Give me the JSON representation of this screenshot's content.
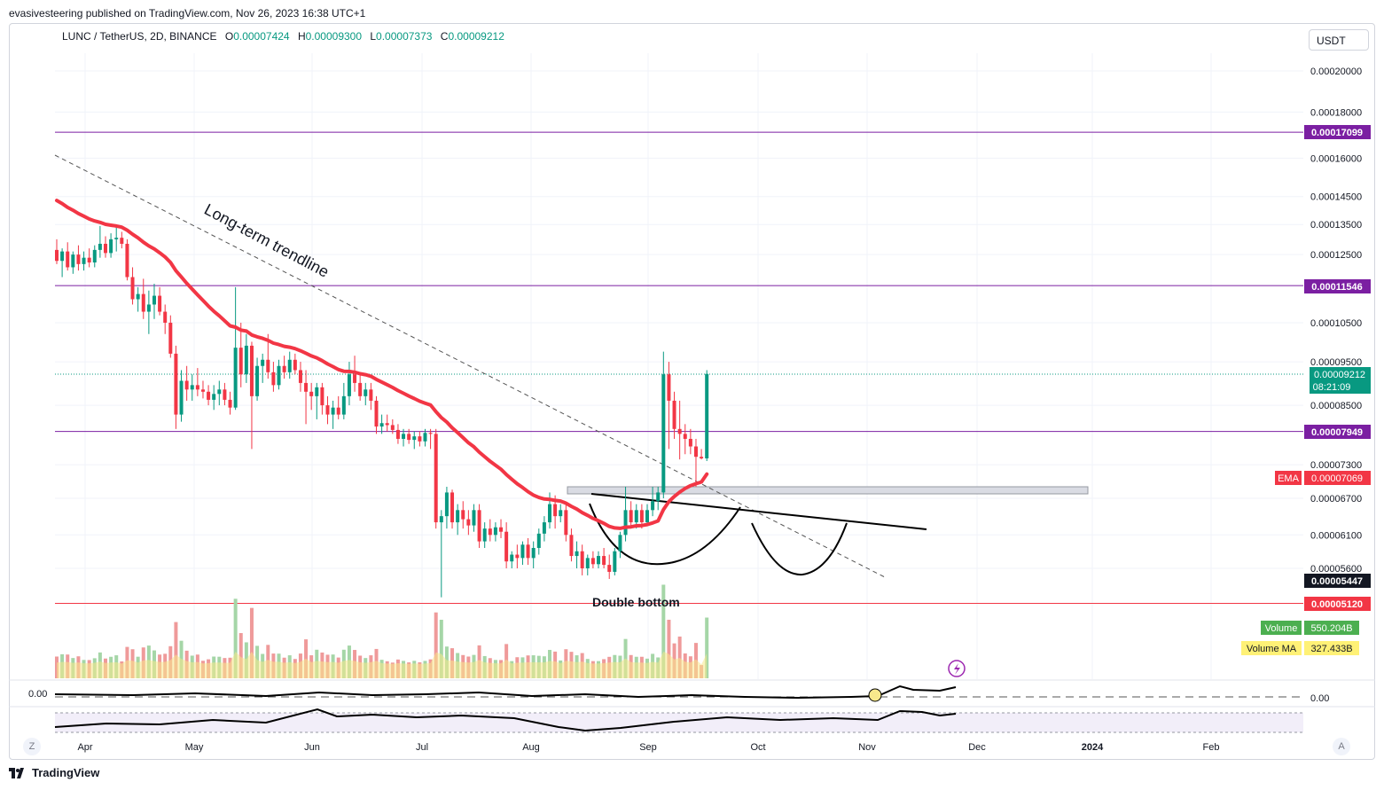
{
  "publisher_line": "evasivesteering published on TradingView.com, Nov 26, 2023 16:38 UTC+1",
  "legend": {
    "symbol": "LUNC / TetherUS, 2D, BINANCE",
    "o_label": "O",
    "o": "0.00007424",
    "h_label": "H",
    "h": "0.00009300",
    "l_label": "L",
    "l": "0.00007373",
    "c_label": "C",
    "c": "0.00009212"
  },
  "currency": "USDT",
  "chart_data": {
    "type": "candlestick",
    "symbol": "LUNC / TetherUS",
    "interval": "2D",
    "exchange": "BINANCE",
    "price_axis_ticks": [
      "0.00020000",
      "0.00018000",
      "0.00016000",
      "0.00014500",
      "0.00013500",
      "0.00012500",
      "0.00010500",
      "0.00009500",
      "0.00008500",
      "0.00007300",
      "0.00006700",
      "0.00006100",
      "0.00005600"
    ],
    "time_axis_ticks": [
      "Apr",
      "May",
      "Jun",
      "Jul",
      "Aug",
      "Sep",
      "Oct",
      "Nov",
      "Dec",
      "2024",
      "Feb"
    ],
    "horizontal_levels": [
      {
        "price": 0.00017099,
        "label": "0.00017099",
        "color": "#7b1fa2"
      },
      {
        "price": 0.00011546,
        "label": "0.00011546",
        "color": "#7b1fa2"
      },
      {
        "price": 7.949e-05,
        "label": "0.00007949",
        "color": "#7b1fa2"
      },
      {
        "price": 5.12e-05,
        "label": "0.00005120",
        "color": "#f23645"
      }
    ],
    "last_price": {
      "value": "0.00009212",
      "countdown": "08:21:09"
    },
    "ema": {
      "label": "EMA",
      "value": "0.00007069",
      "color": "#f23645"
    },
    "crosshair_price": "0.00005447",
    "volume": {
      "label": "Volume",
      "value": "550.204B"
    },
    "volume_ma": {
      "label": "Volume MA",
      "value": "327.433B"
    },
    "oscillator_left_label": "0.00",
    "oscillator_right_label": "0.00",
    "annotations": [
      {
        "text": "Long-term trendline"
      },
      {
        "text": "Double bottom"
      }
    ],
    "candles": [
      {
        "t": "Mar 27",
        "o": 0.0001265,
        "h": 0.00013,
        "l": 0.000122,
        "c": 0.000123
      },
      {
        "t": "Mar 29",
        "o": 0.000123,
        "h": 0.000127,
        "l": 0.000118,
        "c": 0.000126
      },
      {
        "t": "Mar 31",
        "o": 0.000126,
        "h": 0.000129,
        "l": 0.00012,
        "c": 0.000121
      },
      {
        "t": "Apr 2",
        "o": 0.000121,
        "h": 0.000126,
        "l": 0.000119,
        "c": 0.000125
      },
      {
        "t": "Apr 4",
        "o": 0.000125,
        "h": 0.000128,
        "l": 0.00012,
        "c": 0.000122
      },
      {
        "t": "Apr 6",
        "o": 0.000122,
        "h": 0.000126,
        "l": 0.00012,
        "c": 0.000124
      },
      {
        "t": "Apr 8",
        "o": 0.000124,
        "h": 0.000127,
        "l": 0.000121,
        "c": 0.0001225
      },
      {
        "t": "Apr 10",
        "o": 0.0001225,
        "h": 0.000128,
        "l": 0.000121,
        "c": 0.0001265
      },
      {
        "t": "Apr 12",
        "o": 0.0001265,
        "h": 0.0001345,
        "l": 0.000124,
        "c": 0.0001285
      },
      {
        "t": "Apr 14",
        "o": 0.0001285,
        "h": 0.000131,
        "l": 0.000124,
        "c": 0.0001255
      },
      {
        "t": "Apr 16",
        "o": 0.0001255,
        "h": 0.000132,
        "l": 0.000124,
        "c": 0.00013
      },
      {
        "t": "Apr 18",
        "o": 0.00013,
        "h": 0.000135,
        "l": 0.000126,
        "c": 0.0001305
      },
      {
        "t": "Apr 20",
        "o": 0.0001305,
        "h": 0.0001325,
        "l": 0.000127,
        "c": 0.0001285
      },
      {
        "t": "Apr 22",
        "o": 0.0001285,
        "h": 0.00013,
        "l": 0.000117,
        "c": 0.000118
      },
      {
        "t": "Apr 24",
        "o": 0.000118,
        "h": 0.000121,
        "l": 0.00011,
        "c": 0.0001115
      },
      {
        "t": "Apr 26",
        "o": 0.0001115,
        "h": 0.000115,
        "l": 0.000108,
        "c": 0.000113
      },
      {
        "t": "Apr 28",
        "o": 0.000113,
        "h": 0.0001175,
        "l": 0.000106,
        "c": 0.000108
      },
      {
        "t": "Apr 30",
        "o": 0.000108,
        "h": 0.000114,
        "l": 0.000102,
        "c": 0.00011
      },
      {
        "t": "May 2",
        "o": 0.00011,
        "h": 0.000116,
        "l": 0.000106,
        "c": 0.0001125
      },
      {
        "t": "May 4",
        "o": 0.0001125,
        "h": 0.000115,
        "l": 0.000107,
        "c": 0.000108
      },
      {
        "t": "May 6",
        "o": 0.000108,
        "h": 0.00011,
        "l": 0.000102,
        "c": 0.000105
      },
      {
        "t": "May 8",
        "o": 0.000105,
        "h": 0.000107,
        "l": 9.6e-05,
        "c": 9.7e-05
      },
      {
        "t": "May 10",
        "o": 9.7e-05,
        "h": 9.9e-05,
        "l": 8e-05,
        "c": 8.3e-05
      },
      {
        "t": "May 12",
        "o": 8.3e-05,
        "h": 9.3e-05,
        "l": 8.15e-05,
        "c": 9.05e-05
      },
      {
        "t": "May 14",
        "o": 9.05e-05,
        "h": 9.4e-05,
        "l": 8.6e-05,
        "c": 8.85e-05
      },
      {
        "t": "May 16",
        "o": 8.85e-05,
        "h": 9.2e-05,
        "l": 8.6e-05,
        "c": 8.95e-05
      },
      {
        "t": "May 18",
        "o": 8.95e-05,
        "h": 9.35e-05,
        "l": 8.7e-05,
        "c": 8.85e-05
      },
      {
        "t": "May 20",
        "o": 8.85e-05,
        "h": 9.05e-05,
        "l": 8.65e-05,
        "c": 8.8e-05
      },
      {
        "t": "May 22",
        "o": 8.8e-05,
        "h": 8.95e-05,
        "l": 8.5e-05,
        "c": 8.62e-05
      },
      {
        "t": "May 24",
        "o": 8.62e-05,
        "h": 8.95e-05,
        "l": 8.4e-05,
        "c": 8.75e-05
      },
      {
        "t": "May 26",
        "o": 8.75e-05,
        "h": 9.05e-05,
        "l": 8.5e-05,
        "c": 8.85e-05
      },
      {
        "t": "May 28",
        "o": 8.85e-05,
        "h": 9e-05,
        "l": 8.5e-05,
        "c": 8.62e-05
      },
      {
        "t": "May 30",
        "o": 8.62e-05,
        "h": 8.8e-05,
        "l": 8.3e-05,
        "c": 8.45e-05
      },
      {
        "t": "Jun 1",
        "o": 8.45e-05,
        "h": 0.000115,
        "l": 8.4e-05,
        "c": 9.85e-05
      },
      {
        "t": "Jun 3",
        "o": 9.85e-05,
        "h": 0.000105,
        "l": 8.9e-05,
        "c": 9.2e-05
      },
      {
        "t": "Jun 5",
        "o": 9.2e-05,
        "h": 0.000102,
        "l": 9e-05,
        "c": 9.9e-05
      },
      {
        "t": "Jun 7",
        "o": 9.9e-05,
        "h": 0.0001,
        "l": 7.6e-05,
        "c": 8.7e-05
      },
      {
        "t": "Jun 9",
        "o": 8.7e-05,
        "h": 9.6e-05,
        "l": 8.6e-05,
        "c": 9.4e-05
      },
      {
        "t": "Jun 11",
        "o": 9.4e-05,
        "h": 9.7e-05,
        "l": 9e-05,
        "c": 9.55e-05
      },
      {
        "t": "Jun 13",
        "o": 9.55e-05,
        "h": 0.000102,
        "l": 9.1e-05,
        "c": 9.25e-05
      },
      {
        "t": "Jun 15",
        "o": 9.25e-05,
        "h": 9.5e-05,
        "l": 8.8e-05,
        "c": 8.95e-05
      },
      {
        "t": "Jun 17",
        "o": 8.95e-05,
        "h": 9.55e-05,
        "l": 8.85e-05,
        "c": 9.4e-05
      },
      {
        "t": "Jun 19",
        "o": 9.4e-05,
        "h": 9.65e-05,
        "l": 9.1e-05,
        "c": 9.25e-05
      },
      {
        "t": "Jun 21",
        "o": 9.25e-05,
        "h": 9.75e-05,
        "l": 9.1e-05,
        "c": 9.55e-05
      },
      {
        "t": "Jun 23",
        "o": 9.55e-05,
        "h": 9.7e-05,
        "l": 9.2e-05,
        "c": 9.3e-05
      },
      {
        "t": "Jun 25",
        "o": 9.3e-05,
        "h": 9.5e-05,
        "l": 8.8e-05,
        "c": 9e-05
      },
      {
        "t": "Jun 27",
        "o": 9e-05,
        "h": 9.3e-05,
        "l": 8.1e-05,
        "c": 8.8e-05
      },
      {
        "t": "Jun 29",
        "o": 8.8e-05,
        "h": 9e-05,
        "l": 8.4e-05,
        "c": 8.7e-05
      },
      {
        "t": "Jul 1",
        "o": 8.7e-05,
        "h": 9e-05,
        "l": 8.2e-05,
        "c": 8.9e-05
      },
      {
        "t": "Jul 3",
        "o": 8.9e-05,
        "h": 9e-05,
        "l": 8.3e-05,
        "c": 8.5e-05
      },
      {
        "t": "Jul 5",
        "o": 8.5e-05,
        "h": 8.7e-05,
        "l": 8.1e-05,
        "c": 8.3e-05
      },
      {
        "t": "Jul 7",
        "o": 8.3e-05,
        "h": 8.6e-05,
        "l": 8e-05,
        "c": 8.45e-05
      },
      {
        "t": "Jul 9",
        "o": 8.45e-05,
        "h": 8.7e-05,
        "l": 8.2e-05,
        "c": 8.3e-05
      },
      {
        "t": "Jul 11",
        "o": 8.3e-05,
        "h": 9e-05,
        "l": 8.2e-05,
        "c": 8.7e-05
      },
      {
        "t": "Jul 13",
        "o": 8.7e-05,
        "h": 9.5e-05,
        "l": 8.5e-05,
        "c": 9.2e-05
      },
      {
        "t": "Jul 15",
        "o": 9.2e-05,
        "h": 9.65e-05,
        "l": 8.8e-05,
        "c": 9e-05
      },
      {
        "t": "Jul 17",
        "o": 9e-05,
        "h": 9.2e-05,
        "l": 8.6e-05,
        "c": 8.7e-05
      },
      {
        "t": "Jul 19",
        "o": 8.7e-05,
        "h": 9e-05,
        "l": 8.5e-05,
        "c": 8.85e-05
      },
      {
        "t": "Jul 21",
        "o": 8.85e-05,
        "h": 9e-05,
        "l": 8.4e-05,
        "c": 8.6e-05
      },
      {
        "t": "Jul 23",
        "o": 8.6e-05,
        "h": 8.7e-05,
        "l": 7.9e-05,
        "c": 8.05e-05
      },
      {
        "t": "Jul 25",
        "o": 8.05e-05,
        "h": 8.3e-05,
        "l": 7.9e-05,
        "c": 8.12e-05
      },
      {
        "t": "Jul 27",
        "o": 8.12e-05,
        "h": 8.3e-05,
        "l": 7.95e-05,
        "c": 8.08e-05
      },
      {
        "t": "Jul 29",
        "o": 8.08e-05,
        "h": 8.2e-05,
        "l": 7.9e-05,
        "c": 7.98e-05
      },
      {
        "t": "Jul 31",
        "o": 7.98e-05,
        "h": 8.1e-05,
        "l": 7.7e-05,
        "c": 7.8e-05
      },
      {
        "t": "Aug 2",
        "o": 7.8e-05,
        "h": 8e-05,
        "l": 7.65e-05,
        "c": 7.9e-05
      },
      {
        "t": "Aug 4",
        "o": 7.9e-05,
        "h": 8e-05,
        "l": 7.7e-05,
        "c": 7.78e-05
      },
      {
        "t": "Aug 6",
        "o": 7.78e-05,
        "h": 7.95e-05,
        "l": 7.6e-05,
        "c": 7.85e-05
      },
      {
        "t": "Aug 8",
        "o": 7.85e-05,
        "h": 7.95e-05,
        "l": 7.65e-05,
        "c": 7.75e-05
      },
      {
        "t": "Aug 10",
        "o": 7.75e-05,
        "h": 8e-05,
        "l": 7.65e-05,
        "c": 7.92e-05
      },
      {
        "t": "Aug 12",
        "o": 7.92e-05,
        "h": 8e-05,
        "l": 7.6e-05,
        "c": 7.9e-05
      },
      {
        "t": "Aug 14",
        "o": 7.9e-05,
        "h": 8e-05,
        "l": 6.2e-05,
        "c": 6.3e-05
      },
      {
        "t": "Aug 16",
        "o": 6.3e-05,
        "h": 6.5e-05,
        "l": 5.2e-05,
        "c": 6.4e-05
      },
      {
        "t": "Aug 18",
        "o": 6.4e-05,
        "h": 6.9e-05,
        "l": 6.2e-05,
        "c": 6.8e-05
      },
      {
        "t": "Aug 20",
        "o": 6.8e-05,
        "h": 6.85e-05,
        "l": 6.2e-05,
        "c": 6.3e-05
      },
      {
        "t": "Aug 22",
        "o": 6.3e-05,
        "h": 6.6e-05,
        "l": 6.1e-05,
        "c": 6.5e-05
      },
      {
        "t": "Aug 24",
        "o": 6.5e-05,
        "h": 6.65e-05,
        "l": 6.2e-05,
        "c": 6.35e-05
      },
      {
        "t": "Aug 26",
        "o": 6.35e-05,
        "h": 6.5e-05,
        "l": 6.1e-05,
        "c": 6.25e-05
      },
      {
        "t": "Aug 28",
        "o": 6.25e-05,
        "h": 6.6e-05,
        "l": 6.15e-05,
        "c": 6.5e-05
      },
      {
        "t": "Aug 30",
        "o": 6.5e-05,
        "h": 6.6e-05,
        "l": 5.9e-05,
        "c": 6e-05
      },
      {
        "t": "Sep 1",
        "o": 6e-05,
        "h": 6.3e-05,
        "l": 5.9e-05,
        "c": 6.2e-05
      },
      {
        "t": "Sep 3",
        "o": 6.2e-05,
        "h": 6.35e-05,
        "l": 6e-05,
        "c": 6.1e-05
      },
      {
        "t": "Sep 5",
        "o": 6.1e-05,
        "h": 6.3e-05,
        "l": 6e-05,
        "c": 6.22e-05
      },
      {
        "t": "Sep 7",
        "o": 6.22e-05,
        "h": 6.35e-05,
        "l": 6.05e-05,
        "c": 6.15e-05
      },
      {
        "t": "Sep 9",
        "o": 6.15e-05,
        "h": 6.3e-05,
        "l": 5.6e-05,
        "c": 5.7e-05
      },
      {
        "t": "Sep 11",
        "o": 5.7e-05,
        "h": 5.85e-05,
        "l": 5.6e-05,
        "c": 5.8e-05
      },
      {
        "t": "Sep 13",
        "o": 5.8e-05,
        "h": 5.95e-05,
        "l": 5.6e-05,
        "c": 5.75e-05
      },
      {
        "t": "Sep 15",
        "o": 5.75e-05,
        "h": 6e-05,
        "l": 5.65e-05,
        "c": 5.95e-05
      },
      {
        "t": "Sep 17",
        "o": 5.95e-05,
        "h": 6.05e-05,
        "l": 5.65e-05,
        "c": 5.75e-05
      },
      {
        "t": "Sep 19",
        "o": 5.75e-05,
        "h": 6e-05,
        "l": 5.6e-05,
        "c": 5.9e-05
      },
      {
        "t": "Sep 21",
        "o": 5.9e-05,
        "h": 6.2e-05,
        "l": 5.8e-05,
        "c": 6.12e-05
      },
      {
        "t": "Sep 23",
        "o": 6.12e-05,
        "h": 6.4e-05,
        "l": 6e-05,
        "c": 6.3e-05
      },
      {
        "t": "Sep 25",
        "o": 6.3e-05,
        "h": 6.8e-05,
        "l": 6.2e-05,
        "c": 6.6e-05
      },
      {
        "t": "Sep 27",
        "o": 6.6e-05,
        "h": 6.75e-05,
        "l": 6.2e-05,
        "c": 6.4e-05
      },
      {
        "t": "Sep 29",
        "o": 6.4e-05,
        "h": 6.6e-05,
        "l": 6.3e-05,
        "c": 6.5e-05
      },
      {
        "t": "Oct 1",
        "o": 6.5e-05,
        "h": 6.6e-05,
        "l": 6e-05,
        "c": 6.1e-05
      },
      {
        "t": "Oct 3",
        "o": 6.1e-05,
        "h": 6.2e-05,
        "l": 5.7e-05,
        "c": 5.78e-05
      },
      {
        "t": "Oct 5",
        "o": 5.78e-05,
        "h": 6e-05,
        "l": 5.6e-05,
        "c": 5.85e-05
      },
      {
        "t": "Oct 7",
        "o": 5.85e-05,
        "h": 5.95e-05,
        "l": 5.5e-05,
        "c": 5.6e-05
      },
      {
        "t": "Oct 9",
        "o": 5.6e-05,
        "h": 5.8e-05,
        "l": 5.5e-05,
        "c": 5.75e-05
      },
      {
        "t": "Oct 11",
        "o": 5.75e-05,
        "h": 5.85e-05,
        "l": 5.6e-05,
        "c": 5.66e-05
      },
      {
        "t": "Oct 13",
        "o": 5.66e-05,
        "h": 5.85e-05,
        "l": 5.6e-05,
        "c": 5.78e-05
      },
      {
        "t": "Oct 15",
        "o": 5.78e-05,
        "h": 5.9e-05,
        "l": 5.6e-05,
        "c": 5.65e-05
      },
      {
        "t": "Oct 17",
        "o": 5.65e-05,
        "h": 5.8e-05,
        "l": 5.45e-05,
        "c": 5.55e-05
      },
      {
        "t": "Oct 19",
        "o": 5.55e-05,
        "h": 5.9e-05,
        "l": 5.5e-05,
        "c": 5.85e-05
      },
      {
        "t": "Oct 21",
        "o": 5.85e-05,
        "h": 6.15e-05,
        "l": 5.75e-05,
        "c": 6.1e-05
      },
      {
        "t": "Oct 23",
        "o": 6.1e-05,
        "h": 6.9e-05,
        "l": 6e-05,
        "c": 6.5e-05
      },
      {
        "t": "Oct 25",
        "o": 6.5e-05,
        "h": 6.65e-05,
        "l": 6.2e-05,
        "c": 6.3e-05
      },
      {
        "t": "Oct 27",
        "o": 6.3e-05,
        "h": 6.6e-05,
        "l": 6.2e-05,
        "c": 6.5e-05
      },
      {
        "t": "Oct 29",
        "o": 6.5e-05,
        "h": 6.6e-05,
        "l": 6.2e-05,
        "c": 6.3e-05
      },
      {
        "t": "Oct 31",
        "o": 6.3e-05,
        "h": 6.6e-05,
        "l": 6.25e-05,
        "c": 6.5e-05
      },
      {
        "t": "Nov 2",
        "o": 6.5e-05,
        "h": 6.9e-05,
        "l": 6.4e-05,
        "c": 6.65e-05
      },
      {
        "t": "Nov 4",
        "o": 6.65e-05,
        "h": 6.9e-05,
        "l": 6.5e-05,
        "c": 6.8e-05
      },
      {
        "t": "Nov 6",
        "o": 6.8e-05,
        "h": 9.75e-05,
        "l": 6.7e-05,
        "c": 9.2e-05
      },
      {
        "t": "Nov 8",
        "o": 9.2e-05,
        "h": 9.5e-05,
        "l": 7.6e-05,
        "c": 8.6e-05
      },
      {
        "t": "Nov 10",
        "o": 8.6e-05,
        "h": 8.8e-05,
        "l": 7.8e-05,
        "c": 8e-05
      },
      {
        "t": "Nov 12",
        "o": 8e-05,
        "h": 8.6e-05,
        "l": 7.4e-05,
        "c": 7.9e-05
      },
      {
        "t": "Nov 14",
        "o": 7.9e-05,
        "h": 8.1e-05,
        "l": 7.5e-05,
        "c": 7.8e-05
      },
      {
        "t": "Nov 16",
        "o": 7.8e-05,
        "h": 8e-05,
        "l": 7.5e-05,
        "c": 7.65e-05
      },
      {
        "t": "Nov 18",
        "o": 7.65e-05,
        "h": 7.8e-05,
        "l": 6.9e-05,
        "c": 7.45e-05
      },
      {
        "t": "Nov 20",
        "o": 7.45e-05,
        "h": 7.6e-05,
        "l": 7.4e-05,
        "c": 7.42e-05
      },
      {
        "t": "Nov 22",
        "o": 7.42e-05,
        "h": 9.3e-05,
        "l": 7.37e-05,
        "c": 9.21e-05
      }
    ]
  }
}
